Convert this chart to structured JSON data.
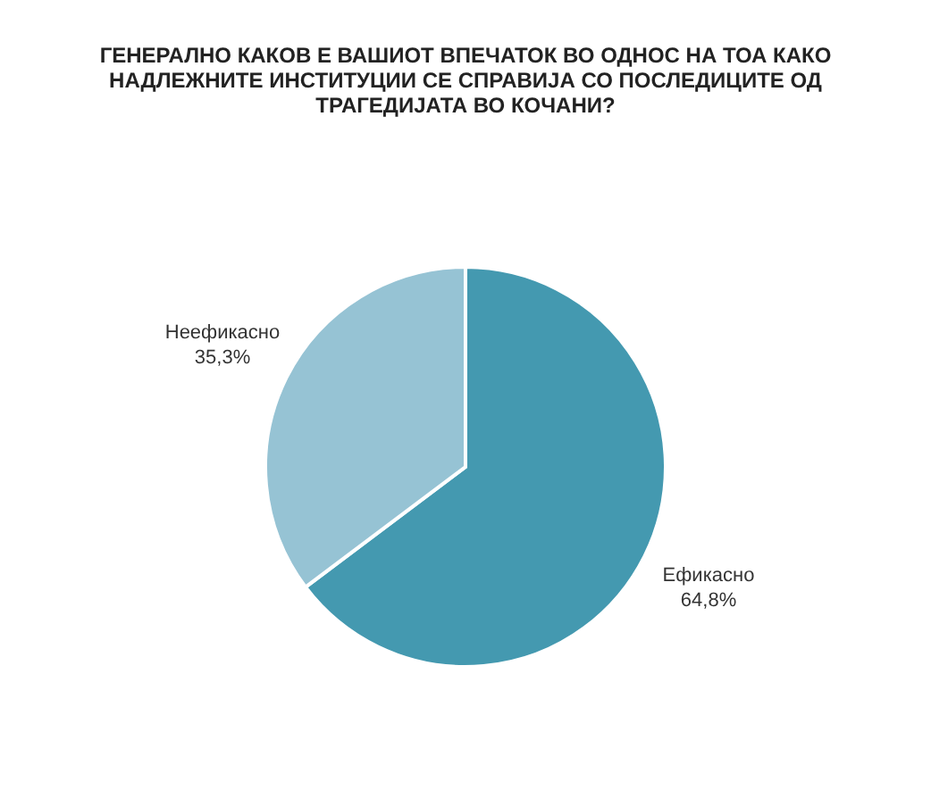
{
  "chart_data": {
    "type": "pie",
    "title": "ГЕНЕРАЛНО КАКОВ Е ВАШИОТ ВПЕЧАТОК ВО ОДНОС НА ТОА КАКО НАДЛЕЖНИТЕ ИНСТИТУЦИИ СЕ СПРАВИЈА СО ПОСЛЕДИЦИТЕ ОД ТРАГЕДИЈАТА ВО КОЧАНИ?",
    "categories": [
      "Ефикасно",
      "Неефикасно"
    ],
    "values": [
      64.8,
      35.3
    ],
    "value_labels": [
      "64,8%",
      "35,3%"
    ],
    "colors": [
      "#4499b0",
      "#96c3d4"
    ],
    "legend": false
  }
}
